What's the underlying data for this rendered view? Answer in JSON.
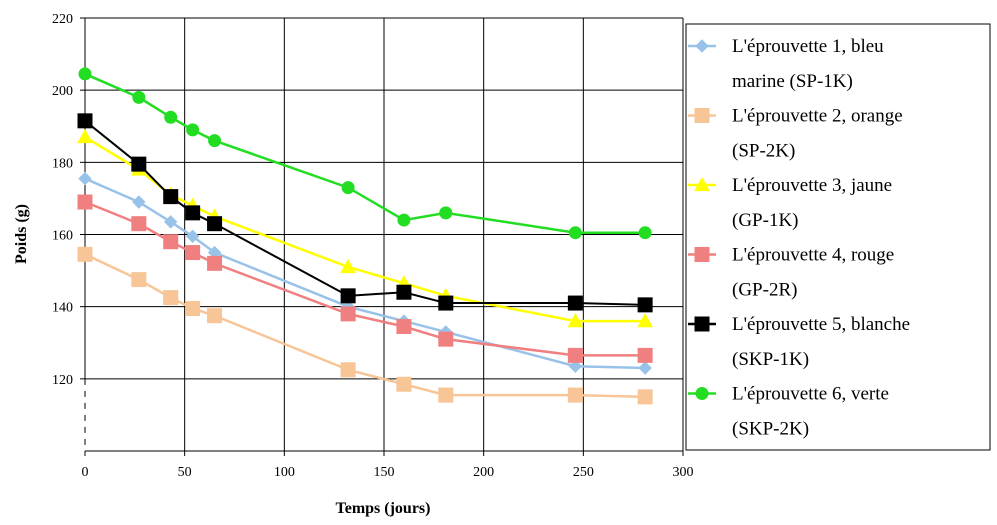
{
  "chart_data": {
    "type": "line",
    "title": "",
    "xlabel": "Temps (jours)",
    "ylabel": "Poids (g)",
    "xlim": [
      0,
      300
    ],
    "ylim": [
      100,
      220
    ],
    "x_ticks": [
      0,
      50,
      100,
      150,
      200,
      250,
      300
    ],
    "y_ticks": [
      120,
      140,
      160,
      180,
      200,
      220
    ],
    "grid": true,
    "legend_position": "right",
    "series": [
      {
        "name": "L'éprouvette 1, bleu marine (SP-1K)",
        "legend_lines": [
          "L'éprouvette 1, bleu",
          "marine (SP-1K)"
        ],
        "color": "#99c2e8",
        "marker": "diamond",
        "x": [
          0,
          27,
          43,
          54,
          65,
          132,
          160,
          181,
          246,
          281
        ],
        "y": [
          175.5,
          169,
          163.5,
          159.5,
          155,
          140,
          136,
          133,
          123.5,
          123
        ]
      },
      {
        "name": "L'éprouvette 2, orange (SP-2K)",
        "legend_lines": [
          "L'éprouvette 2, orange",
          "(SP-2K)"
        ],
        "color": "#f7c596",
        "marker": "square",
        "x": [
          0,
          27,
          43,
          54,
          65,
          132,
          160,
          181,
          246,
          281
        ],
        "y": [
          154.5,
          147.5,
          142.5,
          139.5,
          137.5,
          122.5,
          118.5,
          115.5,
          115.5,
          115
        ]
      },
      {
        "name": "L'éprouvette 3, jaune (GP-1K)",
        "legend_lines": [
          "L'éprouvette 3, jaune",
          "(GP-1K)"
        ],
        "color": "#ffff00",
        "marker": "triangle",
        "x": [
          0,
          27,
          43,
          54,
          65,
          132,
          160,
          181,
          246,
          281
        ],
        "y": [
          187,
          178,
          171,
          168,
          165,
          151,
          146.5,
          143,
          136,
          136
        ]
      },
      {
        "name": "L'éprouvette 4, rouge (GP-2R)",
        "legend_lines": [
          "L'éprouvette 4, rouge",
          "(GP-2R)"
        ],
        "color": "#f08080",
        "marker": "square",
        "x": [
          0,
          27,
          43,
          54,
          65,
          132,
          160,
          181,
          246,
          281
        ],
        "y": [
          169,
          163,
          158,
          155,
          152,
          138,
          134.5,
          131,
          126.5,
          126.5
        ]
      },
      {
        "name": "L'éprouvette 5, blanche (SKP-1K)",
        "legend_lines": [
          "L'éprouvette 5, blanche",
          "(SKP-1K)"
        ],
        "color": "#000000",
        "marker": "square",
        "x": [
          0,
          27,
          43,
          54,
          65,
          132,
          160,
          181,
          246,
          281
        ],
        "y": [
          191.5,
          179.5,
          170.5,
          166,
          163,
          143,
          144,
          141,
          141,
          140.5
        ]
      },
      {
        "name": "L'éprouvette 6, verte (SKP-2K)",
        "legend_lines": [
          "L'éprouvette 6, verte",
          "(SKP-2K)"
        ],
        "color": "#22dd22",
        "marker": "circle",
        "x": [
          0,
          27,
          43,
          54,
          65,
          132,
          160,
          181,
          246,
          281
        ],
        "y": [
          204.5,
          198,
          192.5,
          189,
          186,
          173,
          164,
          166,
          160.5,
          160.5
        ]
      }
    ]
  }
}
